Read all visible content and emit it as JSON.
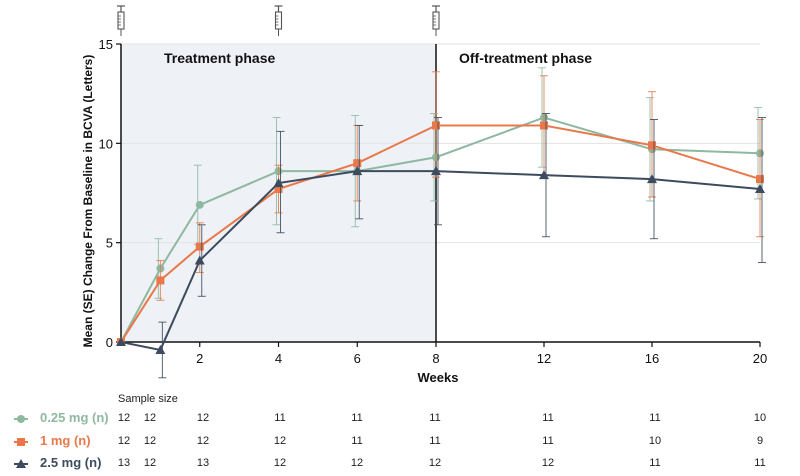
{
  "chart_data": {
    "type": "line",
    "xlabel": "Weeks",
    "ylabel": "Mean (SE) Change From Baseline in BCVA (Letters)",
    "ylim": [
      0,
      15
    ],
    "yticks": [
      0,
      5,
      10,
      15
    ],
    "x_ticks": [
      2,
      4,
      6,
      8,
      12,
      16,
      20
    ],
    "x_tick_labels": [
      "2",
      "4",
      "6",
      "8",
      "12",
      "16",
      "20"
    ],
    "phases": [
      {
        "label": "Treatment phase",
        "from_week": 0,
        "to_week": 8
      },
      {
        "label": "Off-treatment phase",
        "from_week": 8,
        "to_week": 20
      }
    ],
    "injection_weeks": [
      0,
      4,
      8
    ],
    "x": [
      0,
      1,
      2,
      4,
      6,
      8,
      12,
      16,
      20
    ],
    "series": [
      {
        "name": "0.25 mg (n)",
        "color": "#8fb8a0",
        "marker": "circle",
        "values": [
          0,
          3.7,
          6.9,
          8.6,
          8.6,
          9.3,
          11.3,
          9.7,
          9.5
        ],
        "err_low": [
          0,
          2.2,
          4.9,
          5.9,
          5.8,
          7.1,
          8.8,
          7.1,
          7.2
        ],
        "err_high": [
          0,
          5.2,
          8.9,
          11.3,
          11.4,
          11.5,
          13.8,
          12.3,
          11.8
        ]
      },
      {
        "name": "1 mg (n)",
        "color": "#e8784a",
        "marker": "square",
        "values": [
          0,
          3.1,
          4.8,
          7.7,
          9.0,
          10.9,
          10.9,
          9.9,
          8.2
        ],
        "err_low": [
          0,
          2.1,
          3.5,
          6.5,
          7.1,
          8.3,
          8.4,
          7.3,
          5.3
        ],
        "err_high": [
          0,
          4.1,
          6.0,
          8.9,
          10.9,
          13.6,
          13.4,
          12.6,
          11.2
        ]
      },
      {
        "name": "2.5 mg (n)",
        "color": "#3d4b5e",
        "marker": "triangle",
        "values": [
          0,
          -0.4,
          4.1,
          8.0,
          8.6,
          8.6,
          8.4,
          8.2,
          7.7
        ],
        "err_low": [
          0,
          -1.8,
          2.3,
          5.5,
          6.2,
          5.9,
          5.3,
          5.2,
          4.0
        ],
        "err_high": [
          0,
          1.0,
          5.9,
          10.6,
          10.9,
          11.3,
          11.5,
          11.2,
          11.3
        ]
      }
    ]
  },
  "sample_size": {
    "title": "Sample size",
    "rows": [
      {
        "label": "0.25 mg (n)",
        "color": "#8fb8a0",
        "marker": "circle",
        "values": [
          "12",
          "12",
          "12",
          "11",
          "11",
          "11",
          "11",
          "11",
          "10"
        ]
      },
      {
        "label": "1 mg (n)",
        "color": "#e8784a",
        "marker": "square",
        "values": [
          "12",
          "12",
          "12",
          "12",
          "11",
          "11",
          "11",
          "10",
          "9"
        ]
      },
      {
        "label": "2.5 mg (n)",
        "color": "#3d4b5e",
        "marker": "triangle",
        "values": [
          "13",
          "12",
          "13",
          "12",
          "12",
          "12",
          "12",
          "11",
          "11"
        ]
      }
    ]
  }
}
